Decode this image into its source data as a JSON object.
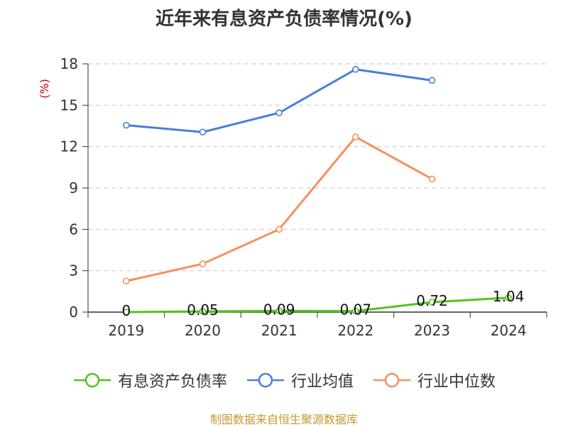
{
  "chart_data": {
    "type": "line",
    "title": "近年来有息资产负债率情况(%)",
    "ylabel": "(%)",
    "xlabel": "",
    "categories": [
      "2019",
      "2020",
      "2021",
      "2022",
      "2023",
      "2024"
    ],
    "ylim": [
      0,
      18
    ],
    "yticks": [
      0,
      3,
      6,
      9,
      12,
      15,
      18
    ],
    "grid": true,
    "legend_position": "bottom",
    "series": [
      {
        "name": "有息资产负债率",
        "color": "#52c41a",
        "values": [
          0,
          0.05,
          0.09,
          0.07,
          0.72,
          1.04
        ],
        "labels": [
          "0",
          "0.05",
          "0.09",
          "0.07",
          "0.72",
          "1.04"
        ]
      },
      {
        "name": "行业均值",
        "color": "#4a7fd8",
        "values": [
          13.55,
          13.05,
          14.45,
          17.6,
          16.8,
          null
        ]
      },
      {
        "name": "行业中位数",
        "color": "#f6905c",
        "values": [
          2.25,
          3.5,
          6.0,
          12.7,
          9.65,
          null
        ]
      }
    ]
  },
  "source": "制图数据来自恒生聚源数据库",
  "colors": {
    "axis": "#333333",
    "grid": "#cccccc",
    "ylabel": "#cc0000",
    "source": "#c49a2f"
  }
}
